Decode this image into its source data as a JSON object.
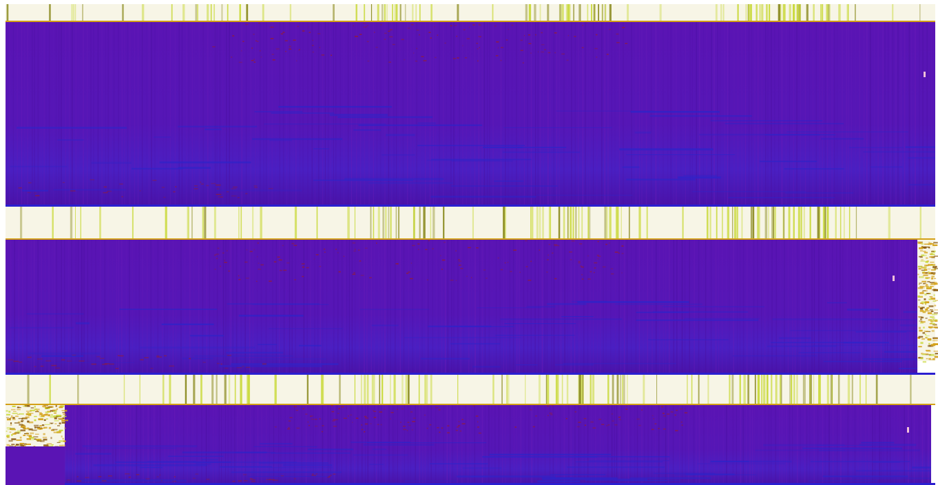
{
  "chart_data": {
    "type": "heatmap",
    "title": "",
    "xlabel": "",
    "ylabel": "",
    "colors": {
      "background": "#ffffff",
      "cream": "#f7f5e6",
      "lime": "#c9d93a",
      "olive": "#8a8a1e",
      "gold": "#d4a017",
      "purple": "#5a14b4",
      "purple_dark": "#4a0fa0",
      "blue": "#2f23c8",
      "blue_band": "#2b1fd0",
      "red": "#9b1c2a",
      "pink_dot": "#f3c0d8"
    },
    "panels": [
      {
        "name": "panel-1",
        "header_stripe_density": [
          0.05,
          0.1,
          0.3,
          0.1,
          0.05,
          0.2,
          0.4,
          0.2,
          0.1,
          0.05,
          0.1,
          0.3,
          0.6,
          0.3,
          0.1,
          0.05,
          0.2,
          0.5,
          0.8,
          0.4,
          0.1,
          0.05,
          0.1,
          0.4,
          0.7,
          0.9,
          0.6,
          0.2,
          0.1,
          0.05
        ],
        "hot_zone": "none"
      },
      {
        "name": "panel-2",
        "header_stripe_density": [
          0.05,
          0.1,
          0.2,
          0.1,
          0.05,
          0.2,
          0.3,
          0.2,
          0.1,
          0.05,
          0.1,
          0.3,
          0.5,
          0.4,
          0.1,
          0.05,
          0.3,
          0.6,
          0.8,
          0.4,
          0.2,
          0.1,
          0.2,
          0.5,
          0.7,
          0.8,
          0.5,
          0.2,
          0.1,
          0.05
        ],
        "hot_zone": "right"
      },
      {
        "name": "panel-3",
        "header_stripe_density": [
          0.05,
          0.05,
          0.1,
          0.1,
          0.05,
          0.2,
          0.3,
          0.4,
          0.1,
          0.05,
          0.2,
          0.4,
          0.6,
          0.3,
          0.1,
          0.1,
          0.3,
          0.5,
          0.7,
          0.5,
          0.2,
          0.1,
          0.2,
          0.5,
          0.8,
          0.7,
          0.5,
          0.3,
          0.1,
          0.05
        ],
        "hot_zone": "left"
      }
    ]
  }
}
